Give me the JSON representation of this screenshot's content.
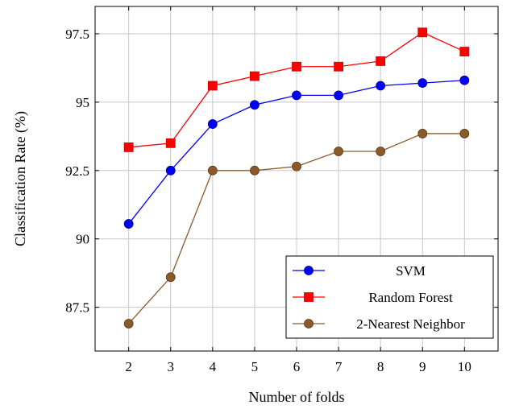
{
  "chart_data": {
    "type": "line",
    "xlabel": "Number of folds",
    "ylabel": "Classification Rate (%)",
    "x": [
      2,
      3,
      4,
      5,
      6,
      7,
      8,
      9,
      10
    ],
    "xlim": [
      1.2,
      10.8
    ],
    "ylim": [
      85.9,
      98.5
    ],
    "yticks": [
      87.5,
      90,
      92.5,
      95,
      97.5
    ],
    "ytick_labels": [
      "87.5",
      "90",
      "92.5",
      "95",
      "97.5"
    ],
    "grid": true,
    "legend_position": "bottom-right",
    "series": [
      {
        "name": "SVM",
        "color": "#0000ff",
        "marker": "circle",
        "values": [
          90.55,
          92.5,
          94.2,
          94.9,
          95.25,
          95.25,
          95.6,
          95.7,
          95.8
        ]
      },
      {
        "name": "Random Forest",
        "color": "#ff0000",
        "marker": "square",
        "values": [
          93.35,
          93.5,
          95.6,
          95.95,
          96.3,
          96.3,
          96.5,
          97.55,
          96.85
        ]
      },
      {
        "name": "2-Nearest Neighbor",
        "color": "#8b5a2b",
        "marker": "circle",
        "values": [
          86.9,
          88.6,
          92.5,
          92.5,
          92.65,
          93.2,
          93.2,
          93.85,
          93.85
        ]
      }
    ]
  }
}
